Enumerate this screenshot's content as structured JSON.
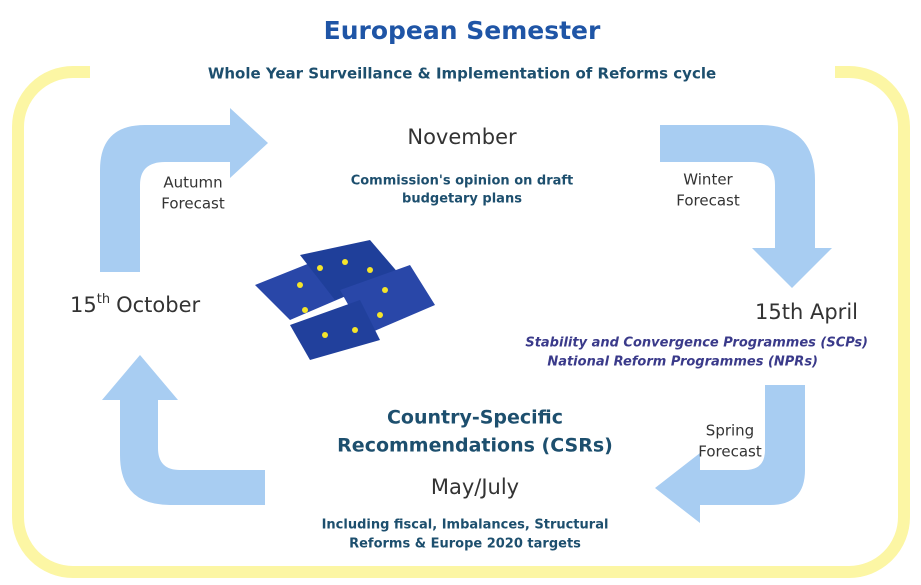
{
  "header": {
    "title": "European Semester",
    "subtitle": "Whole Year Surveillance & Implementation of Reforms cycle"
  },
  "forecasts": {
    "autumn": [
      "Autumn",
      "Forecast"
    ],
    "winter": [
      "Winter",
      "Forecast"
    ],
    "spring": [
      "Spring",
      "Forecast"
    ]
  },
  "nodes": [
    {
      "label": "November",
      "description": [
        "Commission's opinion on draft",
        "budgetary plans"
      ]
    },
    {
      "day": "15",
      "suffix": "th",
      "month": "October"
    },
    {
      "label": "15th April",
      "description": [
        "Stability and Convergence Programmes (SCPs)",
        "National Reform Programmes (NPRs)"
      ]
    },
    {
      "heading": [
        "Country-Specific",
        "Recommendations (CSRs)"
      ],
      "label": "May/July",
      "description": [
        "Including fiscal, Imbalances, Structural",
        "Reforms & Europe 2020 targets"
      ]
    }
  ]
}
